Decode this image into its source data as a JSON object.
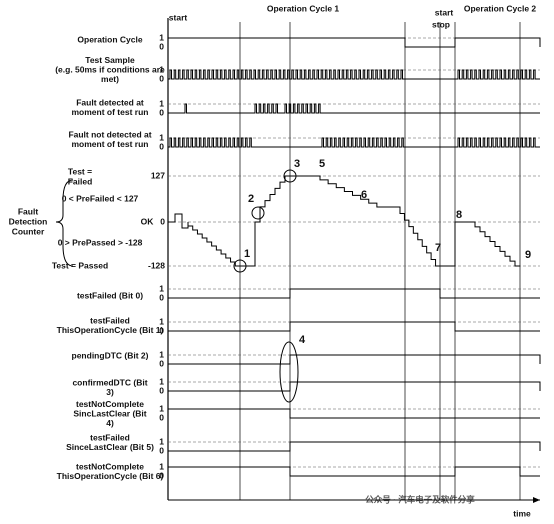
{
  "header": {
    "start_1": "start",
    "cycle_1": "Operation Cycle 1",
    "start_2": "start",
    "stop": "stop",
    "cycle_2": "Operation Cycle 2"
  },
  "rows": [
    {
      "label_lines": [
        "Operation Cycle"
      ],
      "high": "1",
      "low": "0"
    },
    {
      "label_lines": [
        "Test Sample",
        "(e.g. 50ms if conditions are",
        "met)"
      ],
      "high": "1",
      "low": "0"
    },
    {
      "label_lines": [
        "Fault detected at",
        "moment of test run"
      ],
      "high": "1",
      "low": "0"
    },
    {
      "label_lines": [
        "Fault not detected at",
        "moment of test run"
      ],
      "high": "1",
      "low": "0"
    },
    {
      "label_lines": [
        "testFailed (Bit 0)"
      ],
      "high": "1",
      "low": "0"
    },
    {
      "label_lines": [
        "testFailed",
        "ThisOperationCycle (Bit 1)"
      ],
      "high": "1",
      "low": "0"
    },
    {
      "label_lines": [
        "pendingDTC (Bit 2)"
      ],
      "high": "1",
      "low": "0"
    },
    {
      "label_lines": [
        "confirmedDTC (Bit",
        "3)"
      ],
      "high": "1",
      "low": "0"
    },
    {
      "label_lines": [
        "testNotComplete",
        "SincLastClear (Bit",
        "4)"
      ],
      "high": "1",
      "low": "0"
    },
    {
      "label_lines": [
        "testFailed",
        "SinceLastClear (Bit 5)"
      ],
      "high": "1",
      "low": "0"
    },
    {
      "label_lines": [
        "testNotComplete",
        "ThisOperationCycle (Bit 6)"
      ],
      "high": "1",
      "low": "0"
    }
  ],
  "fdc": {
    "title_lines": [
      "Fault",
      "Detection",
      "Counter"
    ],
    "failed_lines": [
      "Test =",
      "Failed"
    ],
    "prefailed": "0 < PreFailed < 127",
    "ok": "OK",
    "prepassed": "0 > PrePassed > -128",
    "passed": "Test = Passed",
    "ticks": [
      127,
      0,
      -128
    ]
  },
  "callouts": [
    "1",
    "2",
    "3",
    "4",
    "5",
    "6",
    "7",
    "8",
    "9"
  ],
  "time": "time",
  "watermark": "公众号 · 汽车电子及软件分享"
}
